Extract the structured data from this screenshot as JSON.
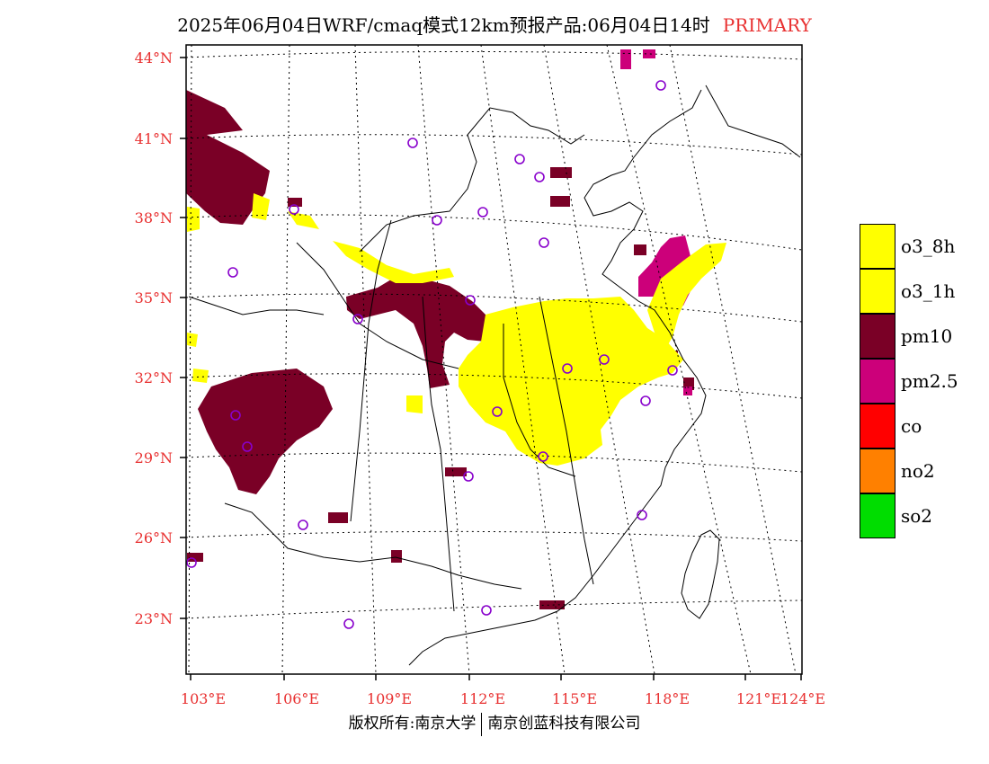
{
  "title": "2025年06月04日WRF/cmaq模式12km预报产品:06月04日14时",
  "title_tag": "PRIMARY",
  "lat_labels": [
    "44°N",
    "41°N",
    "38°N",
    "35°N",
    "32°N",
    "29°N",
    "26°N",
    "23°N"
  ],
  "lon_labels": [
    "103°E",
    "106°E",
    "109°E",
    "112°E",
    "115°E",
    "118°E",
    "121°E",
    "124°E"
  ],
  "legend": [
    {
      "label": "o3_8h",
      "color": "#ffff00"
    },
    {
      "label": "o3_1h",
      "color": "#ffff00"
    },
    {
      "label": "pm10",
      "color": "#7a0026"
    },
    {
      "label": "pm2.5",
      "color": "#cc007a"
    },
    {
      "label": "co",
      "color": "#ff0000"
    },
    {
      "label": "no2",
      "color": "#ff8000"
    },
    {
      "label": "so2",
      "color": "#00dd00"
    }
  ],
  "footer_left": "版权所有:南京大学",
  "footer_right": "南京创蓝科技有限公司",
  "colors": {
    "axis_label": "#e83030",
    "station_marker": "#8800cc"
  }
}
